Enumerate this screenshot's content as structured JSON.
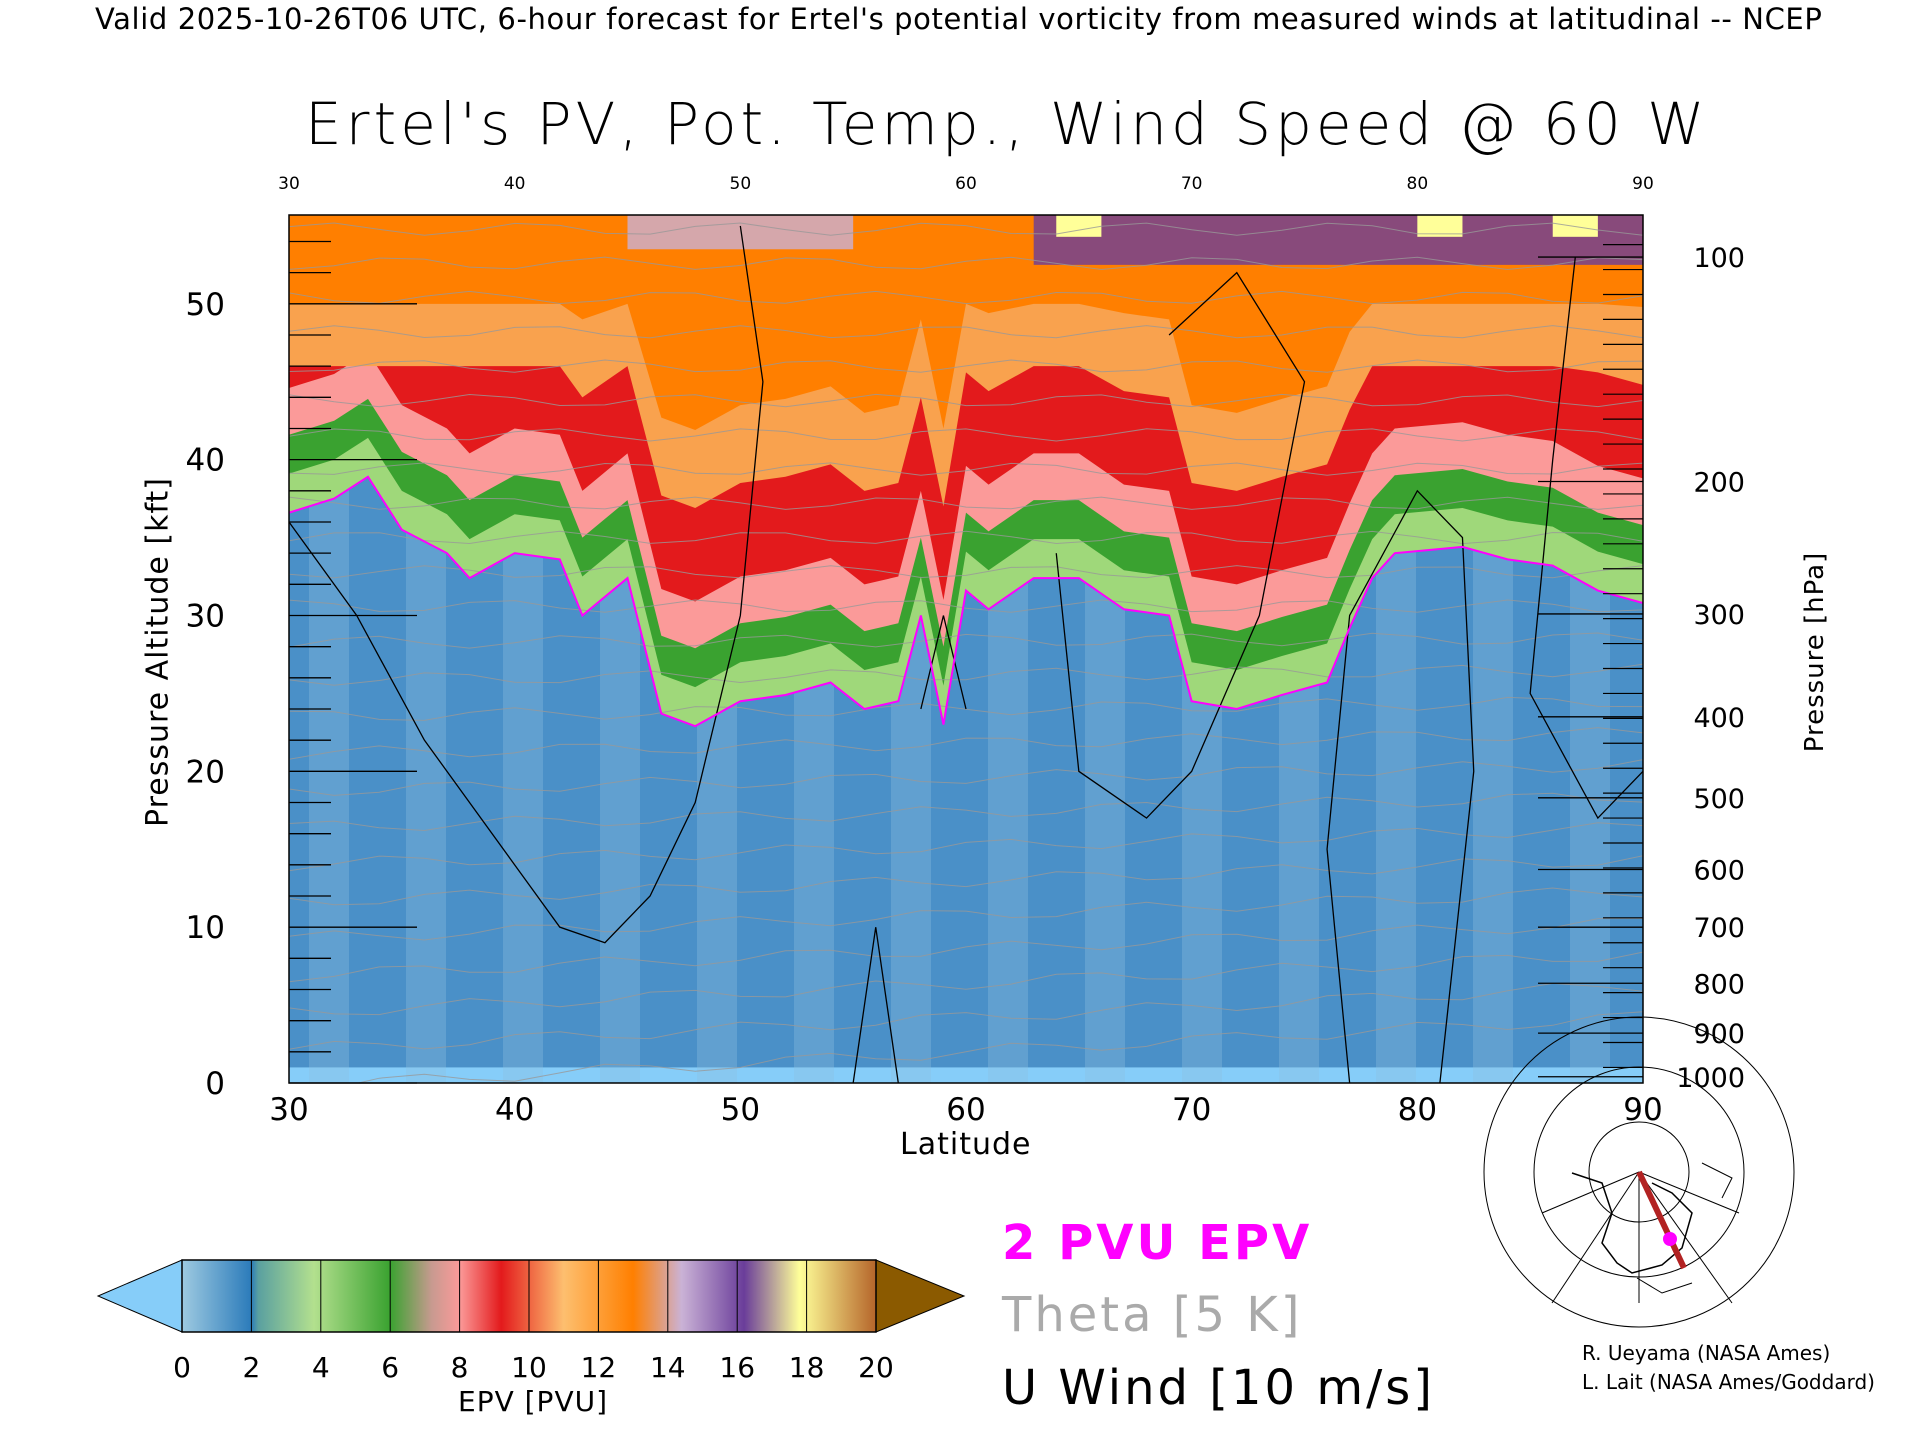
{
  "header": "Valid 2025-10-26T06 UTC, 6-hour forecast for Ertel's potential vorticity from measured winds at latitudinal -- NCEP",
  "chart_data": {
    "type": "heatmap",
    "title": "Ertel's PV, Pot. Temp., Wind Speed @ 60 W",
    "xlabel": "Latitude",
    "ylabel": "Pressure Altitude [kft]",
    "ylabel_right": "Pressure [hPa]",
    "xlim": [
      30,
      90
    ],
    "ylim": [
      0,
      55.7
    ],
    "x_ticks": [
      "30",
      "40",
      "50",
      "60",
      "70",
      "80",
      "90"
    ],
    "x_tick_values": [
      30,
      40,
      50,
      60,
      70,
      80,
      90
    ],
    "y_ticks": [
      "0",
      "10",
      "20",
      "30",
      "40",
      "50"
    ],
    "y_tick_values": [
      0,
      10,
      20,
      30,
      40,
      50
    ],
    "pressure_ticks": [
      {
        "label": "100",
        "kft": 53.0
      },
      {
        "label": "200",
        "kft": 38.6
      },
      {
        "label": "300",
        "kft": 30.1
      },
      {
        "label": "400",
        "kft": 23.5
      },
      {
        "label": "500",
        "kft": 18.3
      },
      {
        "label": "600",
        "kft": 13.7
      },
      {
        "label": "700",
        "kft": 10.0
      },
      {
        "label": "800",
        "kft": 6.4
      },
      {
        "label": "900",
        "kft": 3.2
      },
      {
        "label": "1000",
        "kft": 0.4
      }
    ],
    "pv2_contour": {
      "lat": [
        30,
        32,
        33.5,
        35,
        37,
        38,
        40,
        42,
        43,
        45,
        46.5,
        48,
        50,
        52,
        54,
        55.5,
        57,
        58,
        59,
        60,
        61,
        63,
        65,
        67,
        69,
        70,
        72,
        74,
        76,
        77,
        78,
        79,
        82,
        84,
        86,
        88,
        90
      ],
      "kft": [
        36.6,
        37.5,
        38.9,
        35.5,
        34,
        32.4,
        34,
        33.6,
        30,
        32.4,
        23.7,
        22.9,
        24.5,
        24.9,
        25.7,
        24,
        24.5,
        30,
        23,
        31.6,
        30.4,
        32.4,
        32.4,
        30.4,
        30,
        24.5,
        24,
        24.9,
        25.7,
        29.2,
        32.4,
        34,
        34.4,
        33.6,
        33.2,
        31.6,
        30.8
      ]
    },
    "colorbar": {
      "label": "EPV [PVU]",
      "ticks": [
        "0",
        "2",
        "4",
        "6",
        "8",
        "10",
        "12",
        "14",
        "16",
        "18",
        "20"
      ],
      "colors": [
        "#86cdf9",
        "#2b7bba",
        "#b3e08e",
        "#3aa230",
        "#fb9a99",
        "#e31a1c",
        "#fdbf6f",
        "#ff7f00",
        "#cab2d6",
        "#6a3d9a",
        "#ffff99",
        "#8b5a00"
      ]
    },
    "legend": [
      "2 PVU EPV",
      "Theta [5 K]",
      "U Wind [10 m/s]"
    ],
    "legend_colors": [
      "#ff00ff",
      "#aaaaaa",
      "#000000"
    ]
  },
  "credits": [
    "R. Ueyama (NASA Ames)",
    "L. Lait (NASA Ames/Goddard)"
  ]
}
